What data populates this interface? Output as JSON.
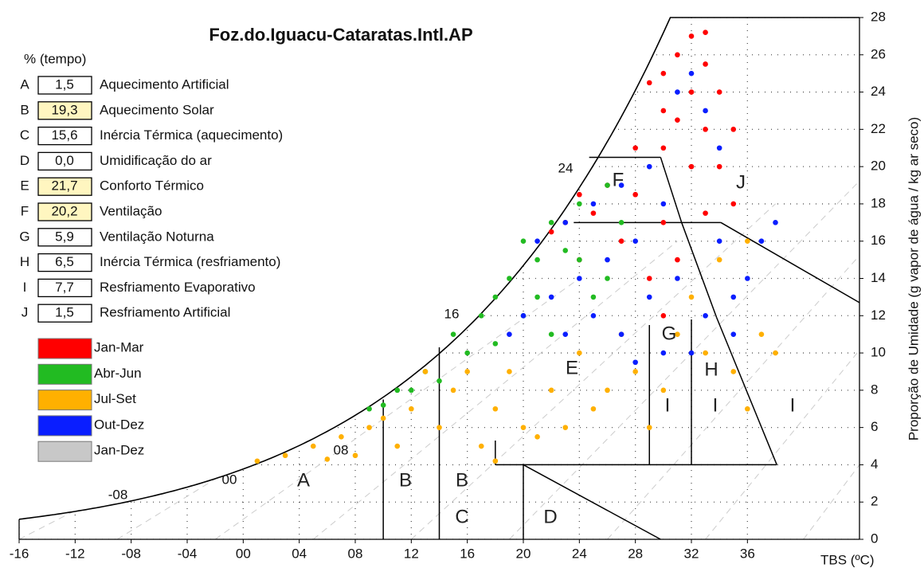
{
  "chart_data": {
    "type": "scatter",
    "title": "Foz.do.Iguacu-Cataratas.Intl.AP",
    "x_label": "TBS (ºC)",
    "y_label": "Proporção de Umidade (g vapor de água / kg ar seco)",
    "xlim": [
      -16,
      44
    ],
    "ylim": [
      0,
      28
    ],
    "xticks": [
      -16,
      -12,
      {
        "value": -8,
        "label": "-08"
      },
      {
        "value": -4,
        "label": "-04"
      },
      {
        "value": 0,
        "label": "00"
      },
      {
        "value": 4,
        "label": "04"
      },
      {
        "value": 8,
        "label": "08"
      },
      12,
      16,
      20,
      24,
      28,
      32,
      36
    ],
    "yticks": [
      0,
      2,
      4,
      6,
      8,
      10,
      12,
      14,
      16,
      18,
      20,
      22,
      24,
      26,
      28
    ],
    "grid": true,
    "time_label": "% (tempo)",
    "strategies": [
      {
        "letter": "A",
        "percent": "1,5",
        "name": "Aquecimento Artificial",
        "highlight": false
      },
      {
        "letter": "B",
        "percent": "19,3",
        "name": "Aquecimento Solar",
        "highlight": true
      },
      {
        "letter": "C",
        "percent": "15,6",
        "name": "Inércia Térmica (aquecimento)",
        "highlight": false
      },
      {
        "letter": "D",
        "percent": "0,0",
        "name": "Umidificação do ar",
        "highlight": false
      },
      {
        "letter": "E",
        "percent": "21,7",
        "name": "Conforto Térmico",
        "highlight": true
      },
      {
        "letter": "F",
        "percent": "20,2",
        "name": "Ventilação",
        "highlight": true
      },
      {
        "letter": "G",
        "percent": "5,9",
        "name": "Ventilação Noturna",
        "highlight": false
      },
      {
        "letter": "H",
        "percent": "6,5",
        "name": "Inércia Térmica (resfriamento)",
        "highlight": false
      },
      {
        "letter": "I",
        "percent": "7,7",
        "name": "Resfriamento Evaporativo",
        "highlight": false
      },
      {
        "letter": "J",
        "percent": "1,5",
        "name": "Resfriamento Artificial",
        "highlight": false
      }
    ],
    "curve_labels": [
      "-08",
      "00",
      "08",
      "16",
      "24"
    ],
    "zone_labels": [
      "A",
      "B",
      "B",
      "C",
      "D",
      "E",
      "F",
      "G",
      "H",
      "I",
      "I",
      "I",
      "J"
    ],
    "series": [
      {
        "name": "Jan-Mar",
        "color": "#ff0000",
        "x": [
          32,
          33,
          31,
          30,
          33,
          29,
          32,
          34,
          30,
          31,
          33,
          35,
          28,
          30,
          32,
          34,
          26,
          24,
          28,
          35,
          25,
          30,
          22,
          27,
          31,
          24,
          29,
          33,
          23,
          30
        ],
        "values": [
          27,
          27.2,
          26,
          25,
          25.5,
          24.5,
          24,
          24,
          23,
          22.5,
          22,
          22,
          21,
          21,
          20,
          20,
          19,
          18.5,
          18.5,
          18,
          17.5,
          17,
          16.5,
          16,
          15,
          15,
          14,
          17.5,
          17,
          12
        ]
      },
      {
        "name": "Abr-Jun",
        "color": "#22bb22",
        "x": [
          26,
          24,
          22,
          20,
          23,
          19,
          21,
          17,
          15,
          18,
          13,
          11,
          10,
          14,
          22,
          25,
          27,
          16,
          12,
          9,
          20,
          24,
          18,
          21,
          26
        ],
        "values": [
          19,
          18,
          17,
          16,
          15.5,
          14,
          13,
          12,
          11,
          10.5,
          9,
          8,
          7.2,
          8.5,
          11,
          13,
          17,
          10,
          8,
          7,
          12,
          15,
          13,
          15,
          14
        ]
      },
      {
        "name": "Jul-Set",
        "color": "#ffb000",
        "x": [
          1,
          3,
          5,
          7,
          9,
          8,
          11,
          12,
          14,
          15,
          16,
          17,
          18,
          19,
          20,
          22,
          23,
          24,
          26,
          28,
          30,
          31,
          33,
          35,
          36,
          37,
          38,
          34,
          36,
          18,
          21,
          25,
          27,
          29,
          13,
          10,
          6,
          32
        ],
        "values": [
          4.2,
          4.5,
          5,
          5.5,
          6,
          4.5,
          5,
          7,
          6,
          8,
          9,
          5,
          7,
          9,
          6,
          8,
          6,
          10,
          8,
          9,
          8,
          11,
          10,
          9,
          7,
          11,
          10,
          15,
          16,
          4.2,
          5.5,
          7,
          11,
          6,
          9,
          6.5,
          4.3,
          13
        ]
      },
      {
        "name": "Out-Dez",
        "color": "#0a1eff",
        "x": [
          21,
          23,
          25,
          27,
          29,
          31,
          32,
          33,
          34,
          30,
          28,
          26,
          24,
          22,
          20,
          25,
          27,
          29,
          31,
          33,
          35,
          36,
          37,
          38,
          35,
          30,
          28,
          32,
          34,
          19,
          23
        ],
        "values": [
          16,
          17,
          18,
          19,
          20,
          24,
          25,
          23,
          21,
          18,
          16,
          15,
          14,
          13,
          12,
          12,
          11,
          13,
          14,
          12,
          13,
          14,
          16,
          17,
          11,
          10,
          9.5,
          10,
          16,
          11,
          11
        ]
      },
      {
        "name": "Jan-Dez",
        "color": "#c8c8c8",
        "x": [],
        "values": []
      }
    ]
  }
}
